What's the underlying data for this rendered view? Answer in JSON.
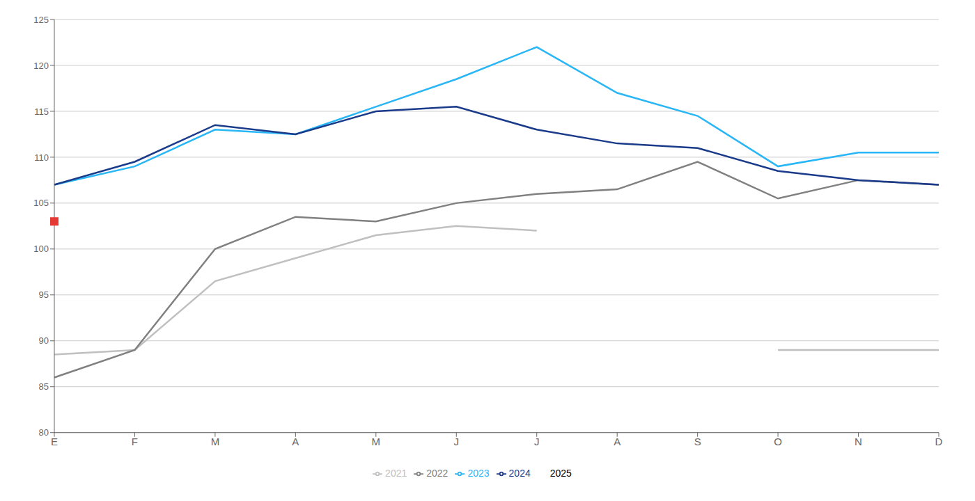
{
  "chart_data": {
    "type": "line",
    "categories": [
      "E",
      "F",
      "M",
      "A",
      "M",
      "J",
      "J",
      "A",
      "S",
      "O",
      "N",
      "D"
    ],
    "series": [
      {
        "name": "2021",
        "color": "#c0c0c0",
        "line_style": "solid",
        "marker": "none",
        "values": [
          88.5,
          89.0,
          96.5,
          99.0,
          101.5,
          102.5,
          102.0,
          null,
          null,
          89.0,
          89.0,
          89.0
        ]
      },
      {
        "name": "2022",
        "color": "#808080",
        "line_style": "solid",
        "marker": "none",
        "values": [
          86.0,
          89.0,
          100.0,
          103.5,
          103.0,
          105.0,
          106.0,
          106.5,
          109.5,
          105.5,
          107.5,
          107.0
        ]
      },
      {
        "name": "2023",
        "color": "#29b6f6",
        "line_style": "solid",
        "marker": "none",
        "values": [
          107.0,
          109.0,
          113.0,
          112.5,
          115.5,
          118.5,
          122.0,
          117.0,
          114.5,
          109.0,
          110.5,
          110.5
        ]
      },
      {
        "name": "2024",
        "color": "#1a3a8a",
        "line_style": "solid",
        "marker": "none",
        "values": [
          107.0,
          109.5,
          113.5,
          112.5,
          115.0,
          115.5,
          113.0,
          111.5,
          111.0,
          108.5,
          107.5,
          107.0
        ]
      },
      {
        "name": "2025",
        "color": "#e53935",
        "line_style": "none",
        "marker": "square",
        "values": [
          103.0,
          null,
          null,
          null,
          null,
          null,
          null,
          null,
          null,
          null,
          null,
          null
        ]
      }
    ],
    "ylim": [
      80,
      125
    ],
    "yticks": [
      80,
      85,
      90,
      95,
      100,
      105,
      110,
      115,
      120,
      125
    ],
    "grid": "y",
    "legend": "bottom"
  }
}
